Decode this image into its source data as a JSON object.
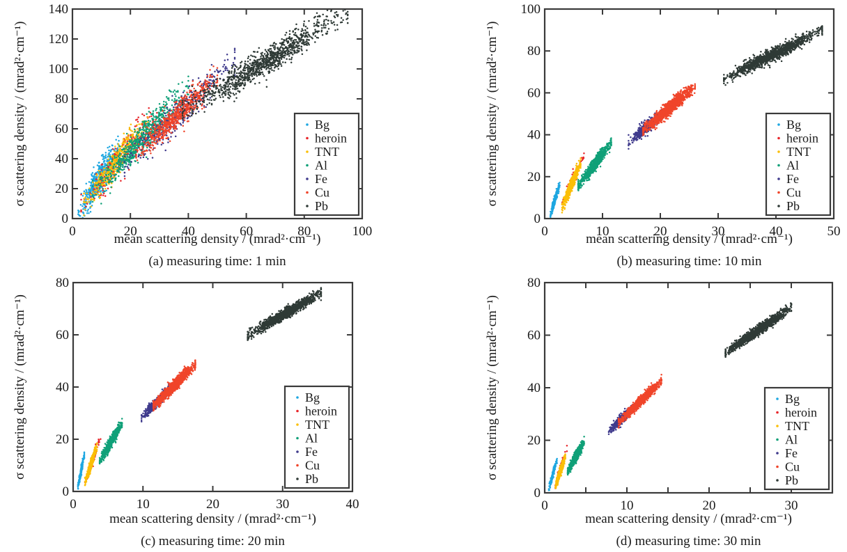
{
  "figure": {
    "series_order": [
      "Bg",
      "heroin",
      "TNT",
      "Al",
      "Fe",
      "Cu",
      "Pb"
    ],
    "colors": {
      "Bg": "#1ea7e1",
      "heroin": "#e8262a",
      "TNT": "#fbbf08",
      "Al": "#10a078",
      "Fe": "#3f3a8c",
      "Cu": "#f0452a",
      "Pb": "#2f3a36"
    }
  },
  "chart_data": [
    {
      "type": "scatter",
      "id": "a",
      "title": "(a) measuring time: 1 min",
      "xlabel": "mean scattering density / (mrad²·cm⁻¹)",
      "ylabel": "σ scattering density / (mrad²·cm⁻¹)",
      "xlim": [
        0,
        100
      ],
      "ylim": [
        0,
        140
      ],
      "xticks": [
        0,
        20,
        40,
        60,
        80,
        100
      ],
      "yticks": [
        0,
        20,
        40,
        60,
        80,
        100,
        120,
        140
      ],
      "grid": false,
      "legend": {
        "position": "bottom-right",
        "entries": [
          "Bg",
          "heroin",
          "TNT",
          "Al",
          "Fe",
          "Cu",
          "Pb"
        ]
      },
      "series": [
        {
          "name": "Bg",
          "x_range": [
            2,
            16
          ],
          "slope": 3.1,
          "intercept": -2,
          "spread": 9,
          "count": 520
        },
        {
          "name": "heroin",
          "x_range": [
            3,
            30
          ],
          "slope": 2.5,
          "intercept": 0,
          "spread": 10,
          "count": 260
        },
        {
          "name": "TNT",
          "x_range": [
            4,
            26
          ],
          "slope": 2.6,
          "intercept": -1,
          "spread": 8,
          "count": 380
        },
        {
          "name": "Al",
          "x_range": [
            7,
            40
          ],
          "slope": 2.15,
          "intercept": 2,
          "spread": 9,
          "count": 650
        },
        {
          "name": "Fe",
          "x_range": [
            18,
            56
          ],
          "slope": 1.85,
          "intercept": 2,
          "spread": 9,
          "count": 420
        },
        {
          "name": "Cu",
          "x_range": [
            22,
            50
          ],
          "slope": 1.8,
          "intercept": 4,
          "spread": 8,
          "count": 600
        },
        {
          "name": "Pb",
          "x_range": [
            38,
            95
          ],
          "slope": 1.15,
          "intercept": 28,
          "spread": 8,
          "count": 1100
        }
      ]
    },
    {
      "type": "scatter",
      "id": "b",
      "title": "(b) measuring time: 10 min",
      "xlabel": "mean scattering density / (mrad²·cm⁻¹)",
      "ylabel": "σ scattering density / (mrad²·cm⁻¹)",
      "xlim": [
        0,
        50
      ],
      "ylim": [
        0,
        100
      ],
      "xticks": [
        0,
        10,
        20,
        30,
        40,
        50
      ],
      "yticks": [
        0,
        20,
        40,
        60,
        80,
        100
      ],
      "grid": false,
      "legend": {
        "position": "bottom-right",
        "entries": [
          "Bg",
          "heroin",
          "TNT",
          "Al",
          "Fe",
          "Cu",
          "Pb"
        ]
      },
      "series": [
        {
          "name": "Bg",
          "x_range": [
            1,
            2.6
          ],
          "slope": 9,
          "intercept": -7,
          "spread": 2,
          "count": 260
        },
        {
          "name": "heroin",
          "x_range": [
            3,
            6.8
          ],
          "slope": 6.2,
          "intercept": -12,
          "spread": 3,
          "count": 90
        },
        {
          "name": "TNT",
          "x_range": [
            3,
            6.2
          ],
          "slope": 6.5,
          "intercept": -14,
          "spread": 2.4,
          "count": 700
        },
        {
          "name": "Al",
          "x_range": [
            5.8,
            11.5
          ],
          "slope": 3.7,
          "intercept": -6,
          "spread": 2.6,
          "count": 900
        },
        {
          "name": "Fe",
          "x_range": [
            14.5,
            20.5
          ],
          "slope": 2.3,
          "intercept": 3,
          "spread": 2.6,
          "count": 420
        },
        {
          "name": "Cu",
          "x_range": [
            17,
            26
          ],
          "slope": 2.3,
          "intercept": 3,
          "spread": 2.8,
          "count": 1200
        },
        {
          "name": "Pb",
          "x_range": [
            31,
            48
          ],
          "slope": 1.35,
          "intercept": 25,
          "spread": 2.6,
          "count": 1300
        }
      ]
    },
    {
      "type": "scatter",
      "id": "c",
      "title": "(c) measuring time: 20 min",
      "xlabel": "mean scattering density / (mrad²·cm⁻¹)",
      "ylabel": "σ scattering density / (mrad²·cm⁻¹)",
      "xlim": [
        0,
        40
      ],
      "ylim": [
        0,
        80
      ],
      "xticks": [
        0,
        10,
        20,
        30,
        40
      ],
      "yticks": [
        0,
        20,
        40,
        60,
        80
      ],
      "grid": false,
      "legend": {
        "position": "bottom-right",
        "entries": [
          "Bg",
          "heroin",
          "TNT",
          "Al",
          "Fe",
          "Cu",
          "Pb"
        ]
      },
      "series": [
        {
          "name": "Bg",
          "x_range": [
            0.6,
            1.6
          ],
          "slope": 13,
          "intercept": -7,
          "spread": 1.4,
          "count": 220
        },
        {
          "name": "heroin",
          "x_range": [
            1.7,
            4
          ],
          "slope": 7.5,
          "intercept": -9,
          "spread": 2.2,
          "count": 70
        },
        {
          "name": "TNT",
          "x_range": [
            1.7,
            3.4
          ],
          "slope": 8,
          "intercept": -10,
          "spread": 1.6,
          "count": 600
        },
        {
          "name": "Al",
          "x_range": [
            3.8,
            7
          ],
          "slope": 4.6,
          "intercept": -6,
          "spread": 1.8,
          "count": 800
        },
        {
          "name": "Fe",
          "x_range": [
            9.8,
            14
          ],
          "slope": 2.6,
          "intercept": 3,
          "spread": 1.8,
          "count": 450
        },
        {
          "name": "Cu",
          "x_range": [
            11.5,
            17.5
          ],
          "slope": 2.6,
          "intercept": 3,
          "spread": 1.8,
          "count": 1300
        },
        {
          "name": "Pb",
          "x_range": [
            25,
            35.5
          ],
          "slope": 1.55,
          "intercept": 21,
          "spread": 1.8,
          "count": 1300
        }
      ]
    },
    {
      "type": "scatter",
      "id": "d",
      "title": "(d) measuring time: 30 min",
      "xlabel": "mean scattering density / (mrad²·cm⁻¹)",
      "ylabel": "σ scattering density / (mrad²·cm⁻¹)",
      "xlim": [
        0,
        35
      ],
      "ylim": [
        0,
        80
      ],
      "xticks": [
        0,
        10,
        20,
        30
      ],
      "xminor": [
        5,
        15,
        25
      ],
      "yticks": [
        0,
        20,
        40,
        60,
        80
      ],
      "grid": false,
      "legend": {
        "position": "bottom-right",
        "entries": [
          "Bg",
          "heroin",
          "TNT",
          "Al",
          "Fe",
          "Cu",
          "Pb"
        ]
      },
      "series": [
        {
          "name": "Bg",
          "x_range": [
            0.5,
            1.5
          ],
          "slope": 12,
          "intercept": -5,
          "spread": 1.3,
          "count": 200
        },
        {
          "name": "heroin",
          "x_range": [
            1.3,
            2.7
          ],
          "slope": 10,
          "intercept": -10,
          "spread": 2,
          "count": 70
        },
        {
          "name": "TNT",
          "x_range": [
            1.3,
            2.5
          ],
          "slope": 9,
          "intercept": -9,
          "spread": 1.5,
          "count": 550
        },
        {
          "name": "Al",
          "x_range": [
            2.8,
            4.8
          ],
          "slope": 5.5,
          "intercept": -7,
          "spread": 1.6,
          "count": 750
        },
        {
          "name": "Fe",
          "x_range": [
            7.8,
            11
          ],
          "slope": 3,
          "intercept": 0,
          "spread": 1.5,
          "count": 450
        },
        {
          "name": "Cu",
          "x_range": [
            9,
            14.2
          ],
          "slope": 3,
          "intercept": 0,
          "spread": 1.5,
          "count": 1300
        },
        {
          "name": "Pb",
          "x_range": [
            22,
            30
          ],
          "slope": 2.15,
          "intercept": 6,
          "spread": 1.6,
          "count": 1300
        }
      ]
    }
  ]
}
